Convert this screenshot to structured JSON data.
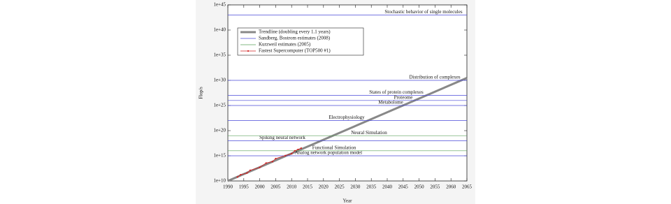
{
  "chart_data": {
    "type": "line",
    "x_label": "Year",
    "y_label": "Flop/s",
    "log_y": true,
    "xlim": [
      1990,
      2065
    ],
    "xticks": [
      1990,
      1995,
      2000,
      2005,
      2010,
      2015,
      2020,
      2025,
      2030,
      2035,
      2040,
      2045,
      2050,
      2055,
      2060,
      2065
    ],
    "ylim": [
      10000000000.0,
      1e+45
    ],
    "yticks": [
      {
        "value": 10000000000.0,
        "label": "1e+10"
      },
      {
        "value": 1000000000000000.0,
        "label": "1e+15"
      },
      {
        "value": 1e+20,
        "label": "1e+20"
      },
      {
        "value": 1e+25,
        "label": "1e+25"
      },
      {
        "value": 1e+30,
        "label": "1e+30"
      },
      {
        "value": 1e+35,
        "label": "1e+35"
      },
      {
        "value": 1e+40,
        "label": "1e+40"
      },
      {
        "value": 1e+45,
        "label": "1e+45"
      }
    ],
    "legend": "upper left",
    "series": [
      {
        "name": "Trendline (doubling every 1.1 years)",
        "color": "#888888",
        "x": [
          1990,
          2065
        ],
        "values": [
          10000000000.0,
          3e+30
        ]
      },
      {
        "name": "Sandberg, Bostrom estimates (2008)",
        "color": "#4a4ad8",
        "style": "level",
        "values": [
          1e+43,
          1e+30,
          1e+27,
          1e+26,
          1e+25,
          1e+22,
          1e+18,
          1000000000000000.0
        ],
        "labels": [
          "Stochastic behavior of single molecules",
          "Distribution of complexes",
          "States of protein complexes",
          "Proteome",
          "Metabolome",
          "Electrophysiology",
          "Spiking neural network",
          "Analog network population model"
        ]
      },
      {
        "name": "Kurzweil estimates (2005)",
        "color": "#5aa05a",
        "style": "level",
        "values": [
          1e+19,
          1e+16
        ],
        "labels": [
          "Neural Simulation",
          "Functional Simulation"
        ]
      },
      {
        "name": "Fastest Supercomputer (TOP500 #1)",
        "color": "#d02020",
        "x": [
          1993,
          1994,
          1996,
          1997,
          2000,
          2002,
          2004,
          2005,
          2008,
          2010,
          2011,
          2012,
          2013
        ],
        "values": [
          60000000000.0,
          170000000000.0,
          370000000000.0,
          1300000000000.0,
          4900000000000.0,
          36000000000000.0,
          70000000000000.0,
          280000000000000.0,
          1100000000000000.0,
          2600000000000000.0,
          1e+16,
          1.8e+16,
          3.4e+16
        ]
      }
    ]
  }
}
